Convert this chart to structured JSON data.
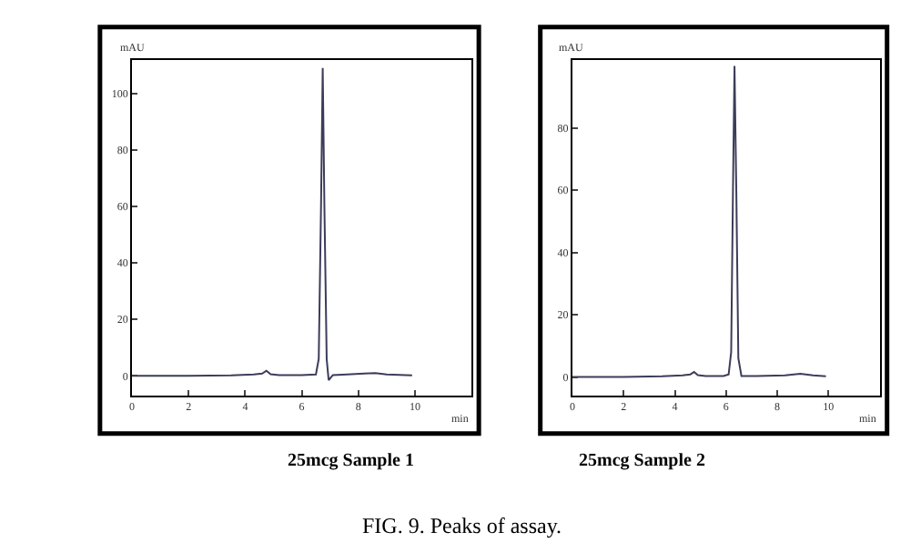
{
  "chart_data": [
    {
      "type": "line",
      "xlabel": "min",
      "ylabel": "mAU",
      "marker": "none",
      "line_style": "solid",
      "x": [
        0,
        2,
        3.5,
        4.3,
        4.6,
        4.75,
        4.9,
        5.2,
        6.0,
        6.5,
        6.6,
        6.68,
        6.74,
        6.8,
        6.88,
        6.95,
        7.1,
        7.6,
        8.2,
        8.6,
        9.0,
        9.9
      ],
      "series": [
        {
          "color": "#3c3c5a",
          "values": [
            0,
            0,
            0.2,
            0.5,
            0.8,
            1.8,
            0.6,
            0.3,
            0.3,
            0.5,
            6,
            60,
            109,
            60,
            6,
            -1.5,
            0.3,
            0.5,
            0.8,
            1,
            0.5,
            0.2
          ]
        }
      ],
      "xlim": [
        0,
        12
      ],
      "ylim": [
        -7,
        112
      ],
      "xticks": [
        0,
        2,
        4,
        6,
        8,
        10
      ],
      "yticks": [
        0,
        20,
        40,
        60,
        80,
        100
      ],
      "annotations": [
        "25mcg Sample 1"
      ]
    },
    {
      "type": "line",
      "xlabel": "min",
      "ylabel": "mAU",
      "marker": "none",
      "line_style": "solid",
      "x": [
        0,
        2,
        3.5,
        4.3,
        4.6,
        4.75,
        4.9,
        5.2,
        5.9,
        6.1,
        6.2,
        6.27,
        6.33,
        6.4,
        6.48,
        6.6,
        7.2,
        8.3,
        8.9,
        9.4,
        9.9
      ],
      "series": [
        {
          "color": "#3c3c5a",
          "values": [
            0,
            0,
            0.2,
            0.5,
            0.8,
            1.6,
            0.6,
            0.3,
            0.3,
            0.8,
            8,
            60,
            100,
            60,
            6,
            0.3,
            0.3,
            0.5,
            1,
            0.5,
            0.2
          ]
        }
      ],
      "xlim": [
        0,
        12
      ],
      "ylim": [
        -6,
        102
      ],
      "xticks": [
        0,
        2,
        4,
        6,
        8,
        10
      ],
      "yticks": [
        0,
        20,
        40,
        60,
        80
      ],
      "annotations": [
        "25mcg Sample 2",
        "FIG. 9. Peaks of assay."
      ]
    }
  ]
}
